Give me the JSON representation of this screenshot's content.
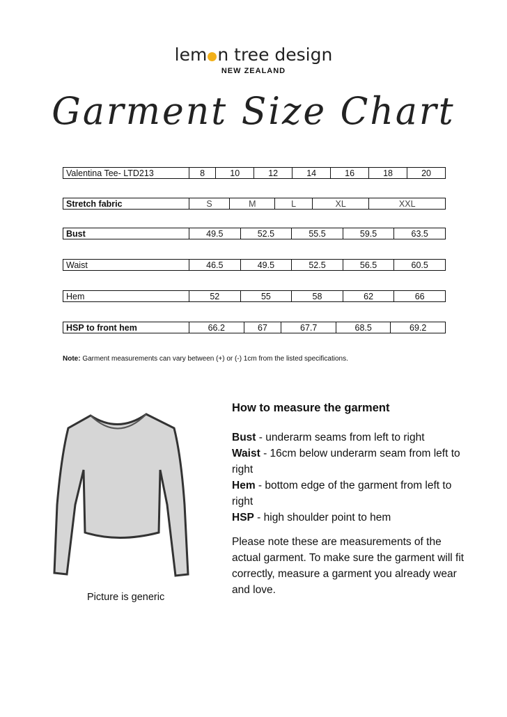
{
  "logo": {
    "brand_before": "lem",
    "brand_after": "n tree design",
    "sub": "NEW ZEALAND",
    "accent": "#f2b019"
  },
  "title": "Garment Size Chart",
  "table": {
    "header": {
      "label": "Valentina Tee- LTD213",
      "sizes": [
        "8",
        "10",
        "12",
        "14",
        "16",
        "18",
        "20"
      ]
    },
    "fabric": {
      "label": "Stretch fabric",
      "sizes": [
        "S",
        "M",
        "L",
        "XL",
        "XXL"
      ]
    },
    "rows": [
      {
        "label": "Bust",
        "values": [
          "49.5",
          "52.5",
          "55.5",
          "59.5",
          "63.5"
        ]
      },
      {
        "label": "Waist",
        "values": [
          "46.5",
          "49.5",
          "52.5",
          "56.5",
          "60.5"
        ]
      },
      {
        "label": "Hem",
        "values": [
          "52",
          "55",
          "58",
          "62",
          "66"
        ]
      },
      {
        "label": "HSP to front hem",
        "values": [
          "66.2",
          "67",
          "67.7",
          "68.5",
          "69.2"
        ]
      }
    ]
  },
  "note": {
    "label": "Note:",
    "text": " Garment measurements can vary between (+) or (-) 1cm from the listed specifications."
  },
  "howto": {
    "heading": "How to measure the garment",
    "items": [
      {
        "term": "Bust",
        "desc": " - underarm seams from left to right"
      },
      {
        "term": "Waist",
        "desc": " - 16cm below underarm seam from left to right"
      },
      {
        "term": "Hem",
        "desc": " - bottom edge of the garment from left to right"
      },
      {
        "term": "HSP",
        "desc": " - high shoulder point to hem"
      }
    ],
    "paragraph": "Please note these are measurements of the actual garment. To make sure the garment will fit correctly, measure a garment you already wear and love."
  },
  "caption": "Picture is generic"
}
